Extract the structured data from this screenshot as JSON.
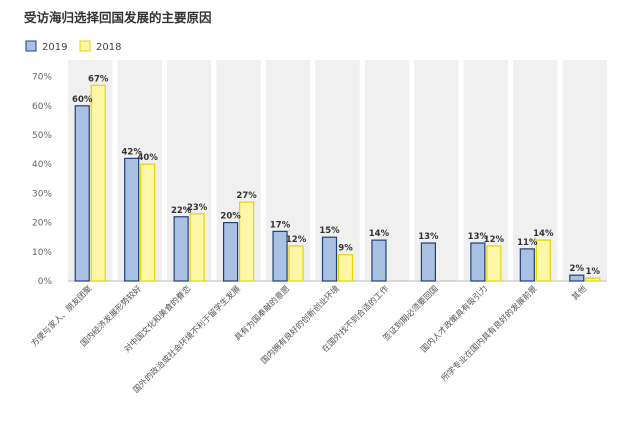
{
  "chart_data": {
    "type": "bar",
    "title": "受访海归选择回国发展的主要原因",
    "categories": [
      "方便与家人、朋友团聚",
      "国内经济发展形势较好",
      "对中国文化和美食的眷恋",
      "国外的政治或社会环境不利于留学生发展",
      "具有为国奉献的意愿",
      "国内拥有良好的创新创业环境",
      "在国外找不到合适的工作",
      "签证到期必须要回国",
      "国内人才政策具有吸引力",
      "所学专业在国内具有良好的发展前景",
      "其他"
    ],
    "series": [
      {
        "name": "2019",
        "values": [
          60,
          42,
          22,
          20,
          17,
          15,
          14,
          13,
          13,
          11,
          2
        ],
        "labels": [
          "60%",
          "42%",
          "22%",
          "20%",
          "17%",
          "15%",
          "14%",
          "13%",
          "13%",
          "11%",
          "2%"
        ]
      },
      {
        "name": "2018",
        "values": [
          67,
          40,
          23,
          27,
          12,
          9,
          null,
          null,
          12,
          14,
          1
        ],
        "labels": [
          "67%",
          "40%",
          "23%",
          "27%",
          "12%",
          "9%",
          "",
          "",
          "12%",
          "14%",
          "1%"
        ]
      }
    ],
    "yticks": [
      "0%",
      "10%",
      "20%",
      "30%",
      "40%",
      "50%",
      "60%",
      "70%"
    ],
    "ylim": [
      0,
      75
    ],
    "xlabel": "",
    "ylabel": "",
    "legend": "top-left",
    "colors": {
      "2019_fill": "#a9c1e3",
      "2019_stroke": "#1f3f7a",
      "2018_fill": "#fff7a8",
      "2018_stroke": "#e6d400",
      "panel": "#f0f0f0"
    }
  }
}
